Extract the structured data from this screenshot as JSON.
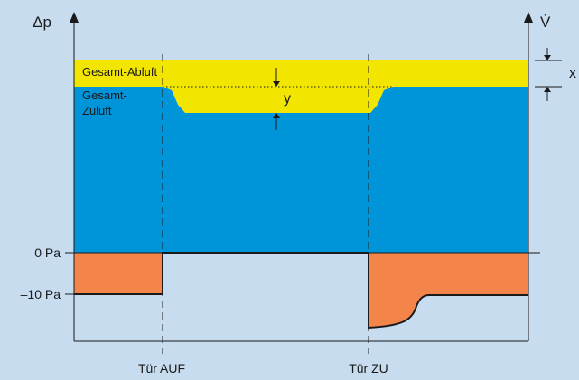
{
  "axes": {
    "left_label": "Δp",
    "right_label": "V̇"
  },
  "bands": {
    "exhaust_label": "Gesamt-Abluft",
    "supply_label_line1": "Gesamt-",
    "supply_label_line2": "Zuluft"
  },
  "markers": {
    "x_label": "x",
    "y_label": "y"
  },
  "pressure_ticks": {
    "zero": "0 Pa",
    "minus10": "–10 Pa"
  },
  "events": {
    "door_open": "Tür AUF",
    "door_close": "Tür ZU"
  },
  "colors": {
    "background": "#c8dcf0",
    "exhaust": "#f2e600",
    "supply": "#0095d9",
    "pressure": "#f4854a"
  }
}
